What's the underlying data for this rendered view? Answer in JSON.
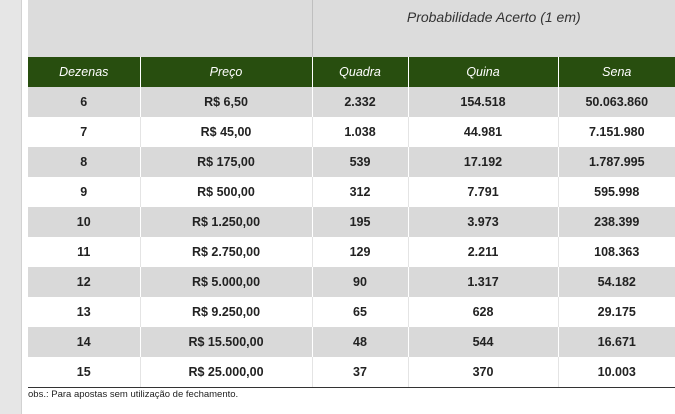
{
  "table": {
    "group_header": "Probabilidade Acerto (1 em)",
    "columns": [
      "Dezenas",
      "Preço",
      "Quadra",
      "Quina",
      "Sena"
    ],
    "rows": [
      [
        "6",
        "R$ 6,50",
        "2.332",
        "154.518",
        "50.063.860"
      ],
      [
        "7",
        "R$ 45,00",
        "1.038",
        "44.981",
        "7.151.980"
      ],
      [
        "8",
        "R$ 175,00",
        "539",
        "17.192",
        "1.787.995"
      ],
      [
        "9",
        "R$ 500,00",
        "312",
        "7.791",
        "595.998"
      ],
      [
        "10",
        "R$ 1.250,00",
        "195",
        "3.973",
        "238.399"
      ],
      [
        "11",
        "R$ 2.750,00",
        "129",
        "2.211",
        "108.363"
      ],
      [
        "12",
        "R$ 5.000,00",
        "90",
        "1.317",
        "54.182"
      ],
      [
        "13",
        "R$ 9.250,00",
        "65",
        "628",
        "29.175"
      ],
      [
        "14",
        "R$ 15.500,00",
        "48",
        "544",
        "16.671"
      ],
      [
        "15",
        "R$ 25.000,00",
        "37",
        "370",
        "10.003"
      ]
    ]
  },
  "note": "obs.: Para apostas sem utilização de fechamento.",
  "colors": {
    "header_bg": "#284e0f",
    "row_alt_bg": "#d9d9d9",
    "group_header_bg": "#dcdcdc"
  }
}
